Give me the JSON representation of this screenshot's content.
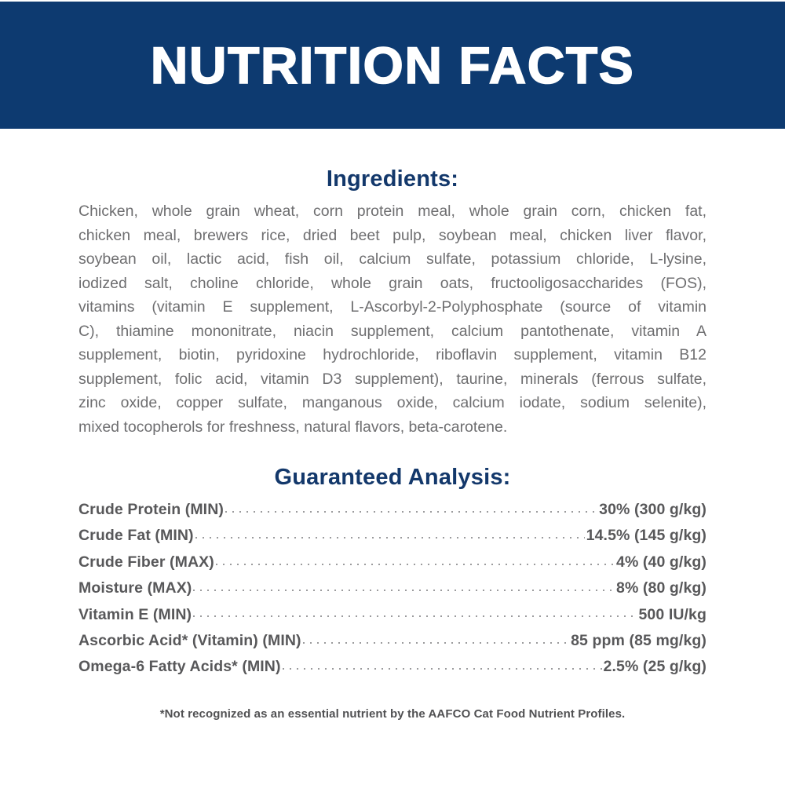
{
  "header": {
    "title": "NUTRITION FACTS"
  },
  "ingredients": {
    "heading": "Ingredients:",
    "lines": [
      "Chicken, whole grain wheat, corn protein meal, whole grain corn, chicken fat,",
      "chicken meal, brewers rice, dried beet pulp, soybean meal, chicken liver flavor,",
      "soybean oil, lactic acid, fish oil, calcium sulfate, potassium chloride, L-lysine,",
      "iodized salt, choline chloride, whole grain oats, fructooligosaccharides (FOS),",
      "vitamins (vitamin E supplement, L-Ascorbyl-2-Polyphosphate (source of vitamin",
      "C), thiamine mononitrate, niacin supplement, calcium pantothenate, vitamin A",
      "supplement, biotin, pyridoxine hydrochloride, riboflavin supplement, vitamin B12",
      "supplement, folic acid, vitamin D3 supplement), taurine, minerals (ferrous sulfate,",
      "zinc oxide, copper sulfate, manganous oxide, calcium iodate, sodium selenite),",
      "mixed tocopherols for freshness, natural flavors, beta-carotene."
    ]
  },
  "guaranteed_analysis": {
    "heading": "Guaranteed Analysis:",
    "rows": [
      {
        "label": "Crude Protein (MIN)",
        "value": "30% (300 g/kg)"
      },
      {
        "label": "Crude Fat (MIN)",
        "value": "14.5% (145 g/kg)"
      },
      {
        "label": "Crude Fiber (MAX)",
        "value": "4% (40 g/kg)"
      },
      {
        "label": "Moisture (MAX)",
        "value": "8% (80 g/kg)"
      },
      {
        "label": "Vitamin E (MIN)",
        "value": "500 IU/kg"
      },
      {
        "label": "Ascorbic Acid* (Vitamin) (MIN)",
        "value": "85 ppm (85 mg/kg)"
      },
      {
        "label": "Omega-6 Fatty Acids* (MIN)",
        "value": "2.5% (25 g/kg)"
      }
    ]
  },
  "footnote": "*Not recognized as an essential nutrient by the AAFCO Cat Food Nutrient Profiles.",
  "colors": {
    "navy": "#0d3a70",
    "heading": "#13386b",
    "body_gray": "#6e6e70",
    "analysis_gray": "#58585a",
    "dots": "#9b9b9d",
    "footnote_gray": "#515153"
  }
}
